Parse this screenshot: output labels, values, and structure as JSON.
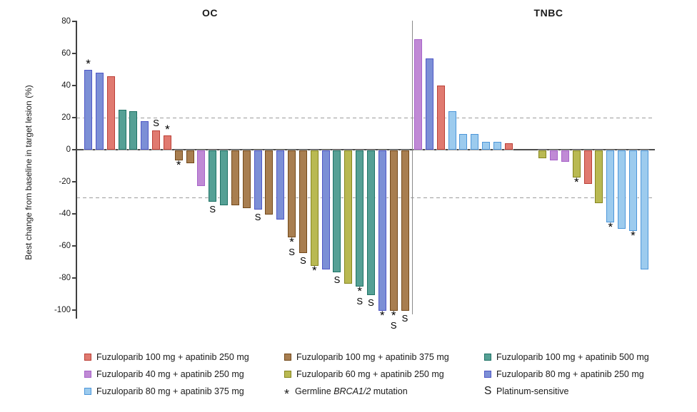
{
  "figure": {
    "background": "#ffffff",
    "line_colors": {
      "axis": "#404040",
      "zero_line": "#4d4d4d",
      "reference_dashed": "#9c9c9c",
      "group_separator": "#8a8a8a"
    }
  },
  "doses": {
    "fz100_ap250": {
      "label": "Fuzuloparib 100 mg + apatinib 250 mg",
      "fill": "#e07a70",
      "border": "#bb3f36"
    },
    "fz40_ap250": {
      "label": "Fuzuloparib 40 mg + apatinib 250 mg",
      "fill": "#c08ad5",
      "border": "#a763c9"
    },
    "fz80_ap375": {
      "label": "Fuzuloparib 80 mg + apatinib 375 mg",
      "fill": "#9ccbee",
      "border": "#4d96d9"
    },
    "fz100_ap375": {
      "label": "Fuzuloparib 100 mg + apatinib 375 mg",
      "fill": "#a87e50",
      "border": "#73491b"
    },
    "fz60_ap250": {
      "label": "Fuzuloparib 60 mg + apatinib 250 mg",
      "fill": "#b9b952",
      "border": "#85851e"
    },
    "fz100_ap500": {
      "label": "Fuzuloparib 100 mg + apatinib 500 mg",
      "fill": "#55a095",
      "border": "#1f7265"
    },
    "fz80_ap250": {
      "label": "Fuzuloparib 80 mg + apatinib 250 mg",
      "fill": "#7c8fd6",
      "border": "#4f57c6"
    }
  },
  "markers": {
    "asterisk_symbol": "*",
    "asterisk_label_prefix": "Germline ",
    "asterisk_label_italic": "BRCA1/2",
    "asterisk_label_suffix": " mutation",
    "s_symbol": "S",
    "s_label": "Platinum-sensitive"
  },
  "legend": {
    "columns": [
      {
        "items": [
          {
            "type": "dose",
            "dose": "fz100_ap250"
          },
          {
            "type": "dose",
            "dose": "fz40_ap250"
          },
          {
            "type": "dose",
            "dose": "fz80_ap375"
          }
        ]
      },
      {
        "items": [
          {
            "type": "dose",
            "dose": "fz100_ap375"
          },
          {
            "type": "dose",
            "dose": "fz60_ap250"
          },
          {
            "type": "symbol",
            "symbol": "asterisk"
          }
        ]
      },
      {
        "items": [
          {
            "type": "dose",
            "dose": "fz100_ap500"
          },
          {
            "type": "dose",
            "dose": "fz80_ap250"
          },
          {
            "type": "symbol",
            "symbol": "s"
          }
        ]
      }
    ]
  },
  "chart_data": {
    "type": "bar",
    "subtype": "waterfall",
    "ylabel": "Best change from baseline in target lesion (%)",
    "ylim": [
      -105,
      80
    ],
    "yticks": [
      80,
      60,
      40,
      20,
      0,
      -20,
      -40,
      -60,
      -80,
      -100
    ],
    "reference_lines": [
      20,
      -30
    ],
    "grid": "dashed-reference-only",
    "legend_position": "bottom",
    "groups": [
      {
        "name": "OC",
        "bars": [
          {
            "value": 50,
            "dose": "fz80_ap250",
            "marks": [
              "*"
            ]
          },
          {
            "value": 48,
            "dose": "fz80_ap250",
            "marks": []
          },
          {
            "value": 46,
            "dose": "fz100_ap250",
            "marks": []
          },
          {
            "value": 25,
            "dose": "fz100_ap500",
            "marks": []
          },
          {
            "value": 24,
            "dose": "fz100_ap500",
            "marks": []
          },
          {
            "value": 18,
            "dose": "fz80_ap250",
            "marks": []
          },
          {
            "value": 12,
            "dose": "fz100_ap250",
            "marks": [
              "S"
            ]
          },
          {
            "value": 9,
            "dose": "fz100_ap250",
            "marks": [
              "*"
            ]
          },
          {
            "value": -6,
            "dose": "fz100_ap375",
            "marks": [
              "*"
            ]
          },
          {
            "value": -8,
            "dose": "fz100_ap375",
            "marks": []
          },
          {
            "value": -22,
            "dose": "fz40_ap250",
            "marks": []
          },
          {
            "value": -32,
            "dose": "fz100_ap500",
            "marks": [
              "S"
            ]
          },
          {
            "value": -34,
            "dose": "fz100_ap500",
            "marks": []
          },
          {
            "value": -34,
            "dose": "fz100_ap375",
            "marks": []
          },
          {
            "value": -36,
            "dose": "fz100_ap375",
            "marks": []
          },
          {
            "value": -37,
            "dose": "fz80_ap250",
            "marks": [
              "S"
            ]
          },
          {
            "value": -40,
            "dose": "fz100_ap375",
            "marks": []
          },
          {
            "value": -43,
            "dose": "fz80_ap250",
            "marks": []
          },
          {
            "value": -54,
            "dose": "fz100_ap375",
            "marks": [
              "*",
              "S"
            ]
          },
          {
            "value": -64,
            "dose": "fz100_ap375",
            "marks": [
              "S"
            ]
          },
          {
            "value": -72,
            "dose": "fz60_ap250",
            "marks": [
              "*"
            ]
          },
          {
            "value": -74,
            "dose": "fz80_ap250",
            "marks": []
          },
          {
            "value": -76,
            "dose": "fz100_ap500",
            "marks": [
              "S"
            ]
          },
          {
            "value": -83,
            "dose": "fz60_ap250",
            "marks": []
          },
          {
            "value": -85,
            "dose": "fz100_ap500",
            "marks": [
              "*",
              "S"
            ]
          },
          {
            "value": -90,
            "dose": "fz100_ap500",
            "marks": [
              "S"
            ]
          },
          {
            "value": -100,
            "dose": "fz80_ap250",
            "marks": [
              "*"
            ]
          },
          {
            "value": -100,
            "dose": "fz100_ap375",
            "marks": [
              "*",
              "S"
            ]
          },
          {
            "value": -100,
            "dose": "fz100_ap375",
            "marks": [
              "S"
            ]
          }
        ]
      },
      {
        "name": "TNBC",
        "bars": [
          {
            "value": 69,
            "dose": "fz40_ap250",
            "marks": []
          },
          {
            "value": 57,
            "dose": "fz80_ap250",
            "marks": []
          },
          {
            "value": 40,
            "dose": "fz100_ap250",
            "marks": []
          },
          {
            "value": 24,
            "dose": "fz80_ap375",
            "marks": []
          },
          {
            "value": 10,
            "dose": "fz80_ap375",
            "marks": []
          },
          {
            "value": 10,
            "dose": "fz80_ap375",
            "marks": []
          },
          {
            "value": 5,
            "dose": "fz80_ap375",
            "marks": []
          },
          {
            "value": 5,
            "dose": "fz80_ap375",
            "marks": []
          },
          {
            "value": 4,
            "dose": "fz100_ap250",
            "marks": []
          },
          {
            "value": 0,
            "dose": null,
            "marks": []
          },
          {
            "value": 0,
            "dose": null,
            "marks": []
          },
          {
            "value": -5,
            "dose": "fz60_ap250",
            "marks": []
          },
          {
            "value": -6,
            "dose": "fz40_ap250",
            "marks": []
          },
          {
            "value": -7,
            "dose": "fz40_ap250",
            "marks": []
          },
          {
            "value": -17,
            "dose": "fz60_ap250",
            "marks": [
              "*"
            ]
          },
          {
            "value": -21,
            "dose": "fz100_ap250",
            "marks": []
          },
          {
            "value": -33,
            "dose": "fz60_ap250",
            "marks": []
          },
          {
            "value": -45,
            "dose": "fz80_ap375",
            "marks": [
              "*"
            ]
          },
          {
            "value": -49,
            "dose": "fz80_ap375",
            "marks": []
          },
          {
            "value": -50,
            "dose": "fz80_ap375",
            "marks": [
              "*"
            ]
          },
          {
            "value": -74,
            "dose": "fz80_ap375",
            "marks": []
          }
        ]
      }
    ]
  }
}
